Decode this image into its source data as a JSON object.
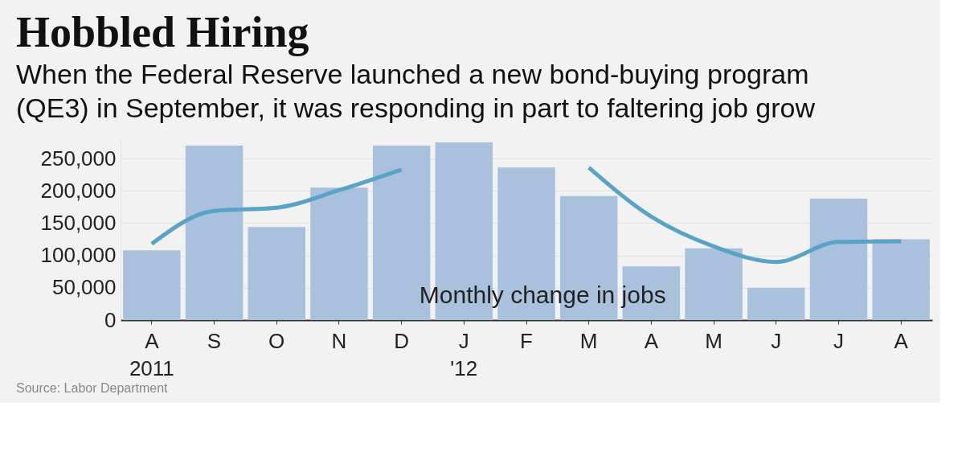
{
  "chart_data": {
    "type": "bar",
    "title": "Hobbled Hiring",
    "subtitle": "When the Federal Reserve launched a new bond-buying program\n(QE3) in September, it was responding in part to faltering job grow",
    "categories": [
      "A\n2011",
      "S",
      "O",
      "N",
      "D",
      "J\n'12",
      "F",
      "M",
      "A",
      "M",
      "J",
      "J",
      "A"
    ],
    "series": [
      {
        "color": "#a9c1dc",
        "values": [
          108000,
          270000,
          144000,
          205000,
          270000,
          275000,
          236000,
          192000,
          83000,
          111000,
          50000,
          188000,
          125000
        ]
      },
      {
        "type": "line",
        "color": "#5aa3c6",
        "values": [
          118000,
          169000,
          174000,
          201000,
          233000,
          null,
          null,
          236000,
          160000,
          114000,
          90000,
          121000,
          122000
        ]
      }
    ],
    "ylim": [
      0,
      280000
    ],
    "yticks": [
      0,
      {
        "value": 50000,
        "label": "50,000"
      },
      {
        "value": 100000,
        "label": "100,000"
      },
      {
        "value": 150000,
        "label": "150,000"
      },
      {
        "value": 200000,
        "label": "200,000"
      },
      {
        "value": 250000,
        "label": "250,000"
      }
    ],
    "grid": "y",
    "annotations": [
      "Monthly change in jobs",
      "Source: Labor Department"
    ]
  }
}
